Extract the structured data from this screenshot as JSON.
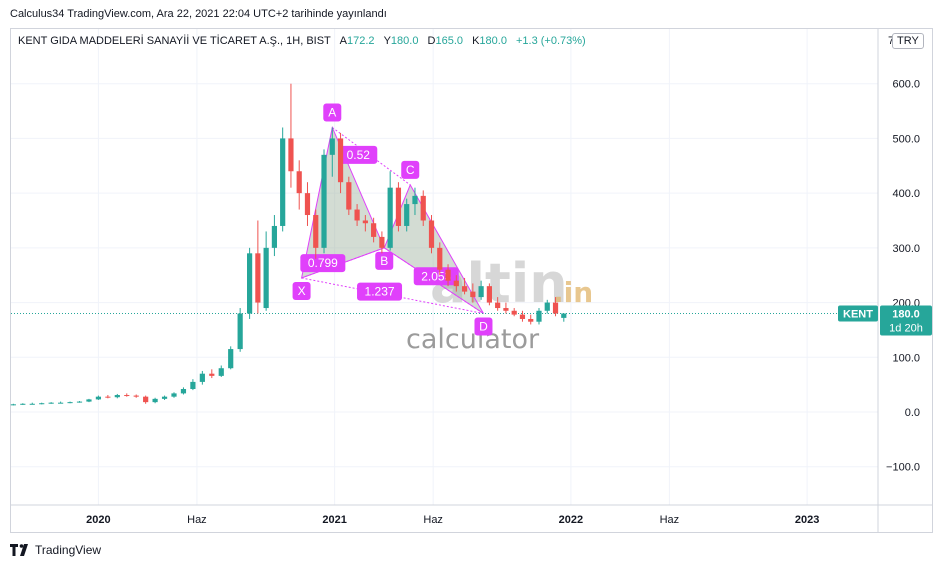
{
  "caption": "Calculus34 TradingView.com, Ara 22, 2021 22:04 UTC+2 tarihinde yayınlandı",
  "legend": {
    "symbol": "KENT GIDA MADDELERİ SANAYİİ VE TİCARET A.Ş., 1H, BIST",
    "open_label": "A",
    "open": "172.2",
    "high_label": "Y",
    "high": "180.0",
    "low_label": "D",
    "low": "165.0",
    "close_label": "K",
    "close": "180.0",
    "change": "+1.3 (+0.73%)"
  },
  "currency": "TRY",
  "currency_prefix": "7",
  "price_tag": {
    "ticker": "KENT",
    "price": "180.0",
    "countdown": "1d 20h",
    "color": "#26a69a"
  },
  "footer_brand": "TradingView",
  "watermark": {
    "word1": "altin",
    "word2": ".in",
    "word3": "calculator"
  },
  "colors": {
    "up": "#26a69a",
    "down": "#ef5350",
    "pattern_fill": "#9db29d",
    "pattern_line": "#e040fb",
    "label_bg": "#e040fb"
  },
  "chart_data": {
    "type": "candlestick",
    "symbol": "KENT",
    "currency": "TRY",
    "ylim": [
      -170,
      700
    ],
    "y_ticks": [
      -100,
      0,
      100,
      200,
      300,
      400,
      500,
      600
    ],
    "y_tick_labels": [
      "−100.0",
      "0.0",
      "100.0",
      "200.0",
      "300.0",
      "400.0",
      "500.0",
      "600.0"
    ],
    "x_ticks": [
      {
        "label": "2020",
        "t": 2020.0
      },
      {
        "label": "Haz",
        "t": 2020.417
      },
      {
        "label": "2021",
        "t": 2021.0
      },
      {
        "label": "Haz",
        "t": 2021.417
      },
      {
        "label": "2022",
        "t": 2022.0
      },
      {
        "label": "Haz",
        "t": 2022.417
      },
      {
        "label": "2023",
        "t": 2023.0
      }
    ],
    "xlim": [
      2019.63,
      2023.3
    ],
    "last_price": 180.0,
    "candles": [
      {
        "t": 2019.64,
        "o": 13,
        "h": 15,
        "l": 12,
        "c": 14
      },
      {
        "t": 2019.68,
        "o": 14,
        "h": 16,
        "l": 13,
        "c": 15
      },
      {
        "t": 2019.72,
        "o": 15,
        "h": 17,
        "l": 14,
        "c": 15
      },
      {
        "t": 2019.76,
        "o": 15,
        "h": 17,
        "l": 14,
        "c": 16
      },
      {
        "t": 2019.8,
        "o": 16,
        "h": 18,
        "l": 15,
        "c": 17
      },
      {
        "t": 2019.84,
        "o": 17,
        "h": 19,
        "l": 16,
        "c": 17
      },
      {
        "t": 2019.88,
        "o": 17,
        "h": 19,
        "l": 16,
        "c": 18
      },
      {
        "t": 2019.92,
        "o": 18,
        "h": 20,
        "l": 17,
        "c": 19
      },
      {
        "t": 2019.96,
        "o": 19,
        "h": 24,
        "l": 18,
        "c": 23
      },
      {
        "t": 2020.0,
        "o": 23,
        "h": 30,
        "l": 22,
        "c": 28
      },
      {
        "t": 2020.04,
        "o": 28,
        "h": 31,
        "l": 25,
        "c": 27
      },
      {
        "t": 2020.08,
        "o": 27,
        "h": 33,
        "l": 25,
        "c": 31
      },
      {
        "t": 2020.12,
        "o": 31,
        "h": 34,
        "l": 28,
        "c": 30
      },
      {
        "t": 2020.16,
        "o": 30,
        "h": 32,
        "l": 26,
        "c": 28
      },
      {
        "t": 2020.2,
        "o": 28,
        "h": 30,
        "l": 15,
        "c": 18
      },
      {
        "t": 2020.24,
        "o": 18,
        "h": 26,
        "l": 16,
        "c": 24
      },
      {
        "t": 2020.28,
        "o": 24,
        "h": 30,
        "l": 22,
        "c": 28
      },
      {
        "t": 2020.32,
        "o": 28,
        "h": 36,
        "l": 26,
        "c": 34
      },
      {
        "t": 2020.36,
        "o": 34,
        "h": 45,
        "l": 32,
        "c": 42
      },
      {
        "t": 2020.4,
        "o": 42,
        "h": 60,
        "l": 40,
        "c": 55
      },
      {
        "t": 2020.44,
        "o": 55,
        "h": 75,
        "l": 50,
        "c": 70
      },
      {
        "t": 2020.48,
        "o": 70,
        "h": 78,
        "l": 62,
        "c": 66
      },
      {
        "t": 2020.52,
        "o": 66,
        "h": 85,
        "l": 64,
        "c": 80
      },
      {
        "t": 2020.56,
        "o": 80,
        "h": 120,
        "l": 78,
        "c": 115
      },
      {
        "t": 2020.6,
        "o": 115,
        "h": 190,
        "l": 110,
        "c": 180
      },
      {
        "t": 2020.64,
        "o": 180,
        "h": 300,
        "l": 170,
        "c": 290
      },
      {
        "t": 2020.675,
        "o": 290,
        "h": 350,
        "l": 180,
        "c": 200
      },
      {
        "t": 2020.71,
        "o": 190,
        "h": 330,
        "l": 185,
        "c": 300
      },
      {
        "t": 2020.745,
        "o": 300,
        "h": 360,
        "l": 285,
        "c": 340
      },
      {
        "t": 2020.78,
        "o": 340,
        "h": 520,
        "l": 330,
        "c": 500
      },
      {
        "t": 2020.815,
        "o": 500,
        "h": 600,
        "l": 410,
        "c": 440
      },
      {
        "t": 2020.85,
        "o": 440,
        "h": 460,
        "l": 370,
        "c": 400
      },
      {
        "t": 2020.885,
        "o": 400,
        "h": 420,
        "l": 340,
        "c": 360
      },
      {
        "t": 2020.92,
        "o": 360,
        "h": 370,
        "l": 280,
        "c": 300
      },
      {
        "t": 2020.955,
        "o": 300,
        "h": 480,
        "l": 290,
        "c": 470
      },
      {
        "t": 2020.99,
        "o": 470,
        "h": 520,
        "l": 430,
        "c": 500
      },
      {
        "t": 2021.025,
        "o": 500,
        "h": 510,
        "l": 400,
        "c": 420
      },
      {
        "t": 2021.06,
        "o": 420,
        "h": 430,
        "l": 360,
        "c": 370
      },
      {
        "t": 2021.095,
        "o": 370,
        "h": 380,
        "l": 340,
        "c": 350
      },
      {
        "t": 2021.13,
        "o": 350,
        "h": 360,
        "l": 330,
        "c": 345
      },
      {
        "t": 2021.165,
        "o": 345,
        "h": 355,
        "l": 310,
        "c": 320
      },
      {
        "t": 2021.2,
        "o": 320,
        "h": 330,
        "l": 290,
        "c": 300
      },
      {
        "t": 2021.235,
        "o": 300,
        "h": 440,
        "l": 295,
        "c": 410
      },
      {
        "t": 2021.27,
        "o": 410,
        "h": 420,
        "l": 330,
        "c": 340
      },
      {
        "t": 2021.305,
        "o": 340,
        "h": 390,
        "l": 330,
        "c": 380
      },
      {
        "t": 2021.34,
        "o": 380,
        "h": 410,
        "l": 360,
        "c": 395
      },
      {
        "t": 2021.375,
        "o": 395,
        "h": 405,
        "l": 340,
        "c": 350
      },
      {
        "t": 2021.41,
        "o": 350,
        "h": 360,
        "l": 290,
        "c": 300
      },
      {
        "t": 2021.445,
        "o": 300,
        "h": 310,
        "l": 250,
        "c": 260
      },
      {
        "t": 2021.48,
        "o": 260,
        "h": 270,
        "l": 230,
        "c": 240
      },
      {
        "t": 2021.515,
        "o": 240,
        "h": 250,
        "l": 220,
        "c": 230
      },
      {
        "t": 2021.55,
        "o": 230,
        "h": 245,
        "l": 215,
        "c": 220
      },
      {
        "t": 2021.585,
        "o": 220,
        "h": 235,
        "l": 200,
        "c": 210
      },
      {
        "t": 2021.62,
        "o": 210,
        "h": 240,
        "l": 205,
        "c": 230
      },
      {
        "t": 2021.655,
        "o": 230,
        "h": 235,
        "l": 195,
        "c": 200
      },
      {
        "t": 2021.69,
        "o": 200,
        "h": 210,
        "l": 185,
        "c": 190
      },
      {
        "t": 2021.725,
        "o": 190,
        "h": 200,
        "l": 180,
        "c": 185
      },
      {
        "t": 2021.76,
        "o": 185,
        "h": 190,
        "l": 175,
        "c": 178
      },
      {
        "t": 2021.795,
        "o": 178,
        "h": 185,
        "l": 165,
        "c": 170
      },
      {
        "t": 2021.83,
        "o": 170,
        "h": 178,
        "l": 160,
        "c": 165
      },
      {
        "t": 2021.865,
        "o": 165,
        "h": 190,
        "l": 160,
        "c": 185
      },
      {
        "t": 2021.9,
        "o": 185,
        "h": 205,
        "l": 180,
        "c": 200
      },
      {
        "t": 2021.935,
        "o": 200,
        "h": 210,
        "l": 175,
        "c": 180
      },
      {
        "t": 2021.97,
        "o": 172,
        "h": 180,
        "l": 165,
        "c": 180
      }
    ],
    "harmonic_pattern": {
      "points": [
        {
          "label": "X",
          "t": 2020.86,
          "price": 245
        },
        {
          "label": "A",
          "t": 2020.99,
          "price": 520
        },
        {
          "label": "B",
          "t": 2021.21,
          "price": 300
        },
        {
          "label": "C",
          "t": 2021.32,
          "price": 415
        },
        {
          "label": "D",
          "t": 2021.63,
          "price": 180
        }
      ],
      "ratios": [
        {
          "text": "0.52",
          "t": 2021.1,
          "price": 470
        },
        {
          "text": "0.799",
          "t": 2020.95,
          "price": 272
        },
        {
          "text": "1.237",
          "t": 2021.19,
          "price": 220
        },
        {
          "text": "2.053",
          "t": 2021.43,
          "price": 248
        }
      ]
    }
  }
}
